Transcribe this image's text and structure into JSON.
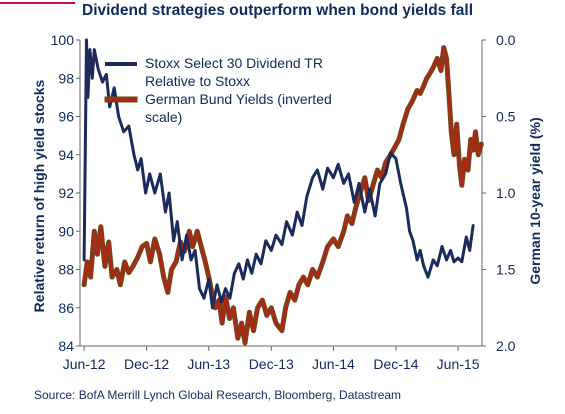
{
  "title": "Dividend strategies outperform when bond yields fall",
  "source": "Source: BofA Merrill Lynch Global Research, Bloomberg, Datastream",
  "colors": {
    "accent_rule": "#c0143c",
    "text": "#0f2a5e",
    "navy_series": "#1c2a5c",
    "red_series": "#a62b16",
    "red_series_outline": "#6b4a1a"
  },
  "chart_data": {
    "type": "line",
    "title": "Dividend strategies outperform when bond yields fall",
    "ylabel_left": "Relative return of high yield stocks",
    "ylabel_right": "German 10-year yield (%)",
    "xlabel": "",
    "x_ticks": [
      "Jun-12",
      "Dec-12",
      "Jun-13",
      "Dec-13",
      "Jun-14",
      "Dec-14",
      "Jun-15"
    ],
    "ylim_left": [
      84,
      100
    ],
    "yticks_left": [
      "84",
      "86",
      "88",
      "90",
      "92",
      "94",
      "96",
      "98",
      "100"
    ],
    "ylim_right_inverted": [
      0.0,
      2.0
    ],
    "yticks_right": [
      "0.0",
      "0.5",
      "1.0",
      "1.5",
      "2.0"
    ],
    "legend_position": "top-left",
    "series": [
      {
        "name": "Stoxx Select 30 Dividend TR Relative to Stoxx",
        "axis": "left",
        "color": "#1c2a5c",
        "points": [
          [
            "2012-06-01",
            88.5
          ],
          [
            "2012-06-08",
            100
          ],
          [
            "2012-06-12",
            97
          ],
          [
            "2012-06-18",
            99.5
          ],
          [
            "2012-06-25",
            98
          ],
          [
            "2012-07-01",
            99.5
          ],
          [
            "2012-07-12",
            98.5
          ],
          [
            "2012-07-25",
            97.8
          ],
          [
            "2012-08-05",
            98.2
          ],
          [
            "2012-08-15",
            96.5
          ],
          [
            "2012-08-28",
            97.5
          ],
          [
            "2012-09-10",
            96
          ],
          [
            "2012-09-25",
            95.2
          ],
          [
            "2012-10-10",
            95.5
          ],
          [
            "2012-10-25",
            94
          ],
          [
            "2012-11-05",
            93.2
          ],
          [
            "2012-11-15",
            93.8
          ],
          [
            "2012-11-28",
            92
          ],
          [
            "2012-12-10",
            93
          ],
          [
            "2012-12-25",
            92
          ],
          [
            "2013-01-10",
            93
          ],
          [
            "2013-01-25",
            91
          ],
          [
            "2013-02-05",
            92
          ],
          [
            "2013-02-18",
            89.5
          ],
          [
            "2013-03-01",
            90.5
          ],
          [
            "2013-03-15",
            88.5
          ],
          [
            "2013-03-28",
            89.8
          ],
          [
            "2013-04-10",
            88.5
          ],
          [
            "2013-04-22",
            89
          ],
          [
            "2013-05-05",
            87
          ],
          [
            "2013-05-18",
            86.5
          ],
          [
            "2013-06-01",
            87.5
          ],
          [
            "2013-06-12",
            86
          ],
          [
            "2013-06-25",
            87.2
          ],
          [
            "2013-07-08",
            86.3
          ],
          [
            "2013-07-20",
            87
          ],
          [
            "2013-08-02",
            86.5
          ],
          [
            "2013-08-15",
            87.8
          ],
          [
            "2013-08-28",
            88.3
          ],
          [
            "2013-09-10",
            87.5
          ],
          [
            "2013-09-22",
            88.5
          ],
          [
            "2013-10-05",
            87.8
          ],
          [
            "2013-10-18",
            88.8
          ],
          [
            "2013-11-01",
            88.3
          ],
          [
            "2013-11-15",
            89.5
          ],
          [
            "2013-12-01",
            89
          ],
          [
            "2013-12-15",
            89.8
          ],
          [
            "2014-01-01",
            89.3
          ],
          [
            "2014-01-15",
            90.5
          ],
          [
            "2014-02-01",
            89.8
          ],
          [
            "2014-02-15",
            91
          ],
          [
            "2014-03-01",
            90.3
          ],
          [
            "2014-03-15",
            91.8
          ],
          [
            "2014-04-01",
            92.8
          ],
          [
            "2014-04-15",
            93.2
          ],
          [
            "2014-05-01",
            92.2
          ],
          [
            "2014-05-15",
            93.3
          ],
          [
            "2014-06-01",
            92.8
          ],
          [
            "2014-06-15",
            93.5
          ],
          [
            "2014-07-01",
            92.5
          ],
          [
            "2014-07-15",
            93
          ],
          [
            "2014-08-01",
            91.5
          ],
          [
            "2014-08-15",
            92.5
          ],
          [
            "2014-09-01",
            91
          ],
          [
            "2014-09-15",
            92.2
          ],
          [
            "2014-10-01",
            90.8
          ],
          [
            "2014-10-15",
            92.5
          ],
          [
            "2014-11-01",
            93
          ],
          [
            "2014-11-15",
            94.1
          ],
          [
            "2014-12-01",
            93.8
          ],
          [
            "2014-12-15",
            92.5
          ],
          [
            "2015-01-01",
            91.2
          ],
          [
            "2015-01-10",
            90
          ],
          [
            "2015-01-20",
            89.5
          ],
          [
            "2015-02-01",
            88.5
          ],
          [
            "2015-02-10",
            89
          ],
          [
            "2015-02-20",
            88.2
          ],
          [
            "2015-03-05",
            87.6
          ],
          [
            "2015-03-20",
            88.5
          ],
          [
            "2015-04-01",
            88.2
          ],
          [
            "2015-04-15",
            89.2
          ],
          [
            "2015-04-28",
            88.5
          ],
          [
            "2015-05-10",
            89
          ],
          [
            "2015-05-20",
            88.4
          ],
          [
            "2015-06-01",
            88.6
          ],
          [
            "2015-06-12",
            88.4
          ],
          [
            "2015-06-25",
            89.7
          ],
          [
            "2015-07-05",
            89
          ],
          [
            "2015-07-15",
            90.3
          ]
        ]
      },
      {
        "name": "German Bund Yields (inverted scale)",
        "axis": "right",
        "color": "#a62b16",
        "points": [
          [
            "2012-06-01",
            1.6
          ],
          [
            "2012-06-10",
            1.45
          ],
          [
            "2012-06-20",
            1.55
          ],
          [
            "2012-07-01",
            1.25
          ],
          [
            "2012-07-10",
            1.4
          ],
          [
            "2012-07-20",
            1.22
          ],
          [
            "2012-08-01",
            1.48
          ],
          [
            "2012-08-12",
            1.32
          ],
          [
            "2012-08-22",
            1.55
          ],
          [
            "2012-09-05",
            1.5
          ],
          [
            "2012-09-15",
            1.6
          ],
          [
            "2012-09-28",
            1.45
          ],
          [
            "2012-10-10",
            1.52
          ],
          [
            "2012-10-22",
            1.48
          ],
          [
            "2012-11-05",
            1.42
          ],
          [
            "2012-11-18",
            1.35
          ],
          [
            "2012-12-01",
            1.33
          ],
          [
            "2012-12-12",
            1.45
          ],
          [
            "2012-12-25",
            1.3
          ],
          [
            "2013-01-08",
            1.4
          ],
          [
            "2013-01-20",
            1.55
          ],
          [
            "2013-02-01",
            1.65
          ],
          [
            "2013-02-12",
            1.5
          ],
          [
            "2013-02-25",
            1.45
          ],
          [
            "2013-03-10",
            1.32
          ],
          [
            "2013-03-22",
            1.38
          ],
          [
            "2013-04-05",
            1.25
          ],
          [
            "2013-04-15",
            1.35
          ],
          [
            "2013-04-28",
            1.25
          ],
          [
            "2013-05-10",
            1.35
          ],
          [
            "2013-05-22",
            1.45
          ],
          [
            "2013-06-01",
            1.55
          ],
          [
            "2013-06-10",
            1.65
          ],
          [
            "2013-06-20",
            1.75
          ],
          [
            "2013-07-01",
            1.7
          ],
          [
            "2013-07-10",
            1.85
          ],
          [
            "2013-07-20",
            1.68
          ],
          [
            "2013-08-01",
            1.82
          ],
          [
            "2013-08-12",
            1.75
          ],
          [
            "2013-08-25",
            1.95
          ],
          [
            "2013-09-05",
            1.85
          ],
          [
            "2013-09-15",
            1.98
          ],
          [
            "2013-09-28",
            1.78
          ],
          [
            "2013-10-10",
            1.9
          ],
          [
            "2013-10-22",
            1.75
          ],
          [
            "2013-11-05",
            1.7
          ],
          [
            "2013-11-18",
            1.8
          ],
          [
            "2013-12-01",
            1.75
          ],
          [
            "2013-12-15",
            1.85
          ],
          [
            "2014-01-01",
            1.9
          ],
          [
            "2014-01-12",
            1.75
          ],
          [
            "2014-01-25",
            1.65
          ],
          [
            "2014-02-08",
            1.7
          ],
          [
            "2014-02-20",
            1.6
          ],
          [
            "2014-03-05",
            1.55
          ],
          [
            "2014-03-18",
            1.6
          ],
          [
            "2014-04-01",
            1.5
          ],
          [
            "2014-04-15",
            1.55
          ],
          [
            "2014-05-01",
            1.45
          ],
          [
            "2014-05-15",
            1.35
          ],
          [
            "2014-06-01",
            1.3
          ],
          [
            "2014-06-15",
            1.35
          ],
          [
            "2014-07-01",
            1.25
          ],
          [
            "2014-07-12",
            1.15
          ],
          [
            "2014-07-25",
            1.2
          ],
          [
            "2014-08-05",
            1.1
          ],
          [
            "2014-08-18",
            1.0
          ],
          [
            "2014-09-01",
            0.9
          ],
          [
            "2014-09-12",
            1.05
          ],
          [
            "2014-09-25",
            0.95
          ],
          [
            "2014-10-08",
            0.85
          ],
          [
            "2014-10-20",
            0.9
          ],
          [
            "2014-11-01",
            0.8
          ],
          [
            "2014-11-15",
            0.75
          ],
          [
            "2014-11-28",
            0.7
          ],
          [
            "2014-12-10",
            0.65
          ],
          [
            "2014-12-22",
            0.55
          ],
          [
            "2015-01-05",
            0.45
          ],
          [
            "2015-01-18",
            0.4
          ],
          [
            "2015-02-01",
            0.33
          ],
          [
            "2015-02-10",
            0.35
          ],
          [
            "2015-02-20",
            0.3
          ],
          [
            "2015-03-01",
            0.25
          ],
          [
            "2015-03-10",
            0.22
          ],
          [
            "2015-03-20",
            0.18
          ],
          [
            "2015-04-01",
            0.12
          ],
          [
            "2015-04-12",
            0.2
          ],
          [
            "2015-04-20",
            0.05
          ],
          [
            "2015-04-28",
            0.12
          ],
          [
            "2015-05-05",
            0.35
          ],
          [
            "2015-05-12",
            0.6
          ],
          [
            "2015-05-20",
            0.75
          ],
          [
            "2015-05-28",
            0.55
          ],
          [
            "2015-06-05",
            0.82
          ],
          [
            "2015-06-12",
            0.95
          ],
          [
            "2015-06-20",
            0.78
          ],
          [
            "2015-06-30",
            0.85
          ],
          [
            "2015-07-08",
            0.65
          ],
          [
            "2015-07-15",
            0.72
          ],
          [
            "2015-07-22",
            0.6
          ],
          [
            "2015-07-30",
            0.75
          ],
          [
            "2015-08-08",
            0.68
          ]
        ]
      }
    ]
  }
}
